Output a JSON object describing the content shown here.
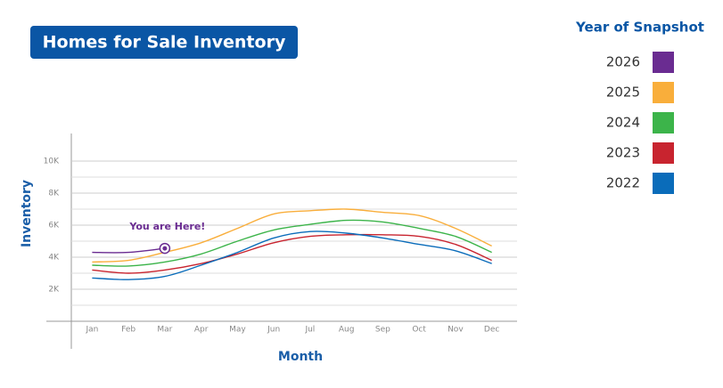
{
  "chart_data": {
    "type": "line",
    "title": "Homes for Sale Inventory",
    "x_label": "Month",
    "y_label": "Inventory",
    "legend_title": "Year of Snapshot",
    "legend_position": "right",
    "annotation": "You are Here!",
    "categories": [
      "Jan",
      "Feb",
      "Mar",
      "Apr",
      "May",
      "Jun",
      "Jul",
      "Aug",
      "Sep",
      "Oct",
      "Nov",
      "Dec"
    ],
    "series": [
      {
        "name": "2026",
        "color": "#6a2c91",
        "values": [
          4300,
          4300,
          4550,
          null,
          null,
          null,
          null,
          null,
          null,
          null,
          null,
          null
        ]
      },
      {
        "name": "2025",
        "color": "#f9ae3b",
        "values": [
          3700,
          3800,
          4300,
          4900,
          5800,
          6700,
          6900,
          7000,
          6800,
          6600,
          5800,
          4700
        ]
      },
      {
        "name": "2024",
        "color": "#3cb44a",
        "values": [
          3500,
          3450,
          3700,
          4200,
          5000,
          5700,
          6050,
          6300,
          6200,
          5800,
          5300,
          4300
        ]
      },
      {
        "name": "2023",
        "color": "#c8242f",
        "values": [
          3200,
          3000,
          3200,
          3600,
          4200,
          4900,
          5300,
          5400,
          5400,
          5300,
          4800,
          3800
        ]
      },
      {
        "name": "2022",
        "color": "#0a6cba",
        "values": [
          2700,
          2600,
          2800,
          3500,
          4300,
          5200,
          5600,
          5500,
          5200,
          4800,
          4400,
          3600
        ]
      }
    ],
    "ylim": [
      0,
      11700
    ],
    "yticks": [
      {
        "value": 2000,
        "label": "2K"
      },
      {
        "value": 4000,
        "label": "4K"
      },
      {
        "value": 6000,
        "label": "6K"
      },
      {
        "value": 8000,
        "label": "8K"
      },
      {
        "value": 10000,
        "label": "10K"
      }
    ],
    "minor_yticks": [
      1000,
      3000,
      5000,
      7000,
      9000
    ],
    "grid": true
  }
}
